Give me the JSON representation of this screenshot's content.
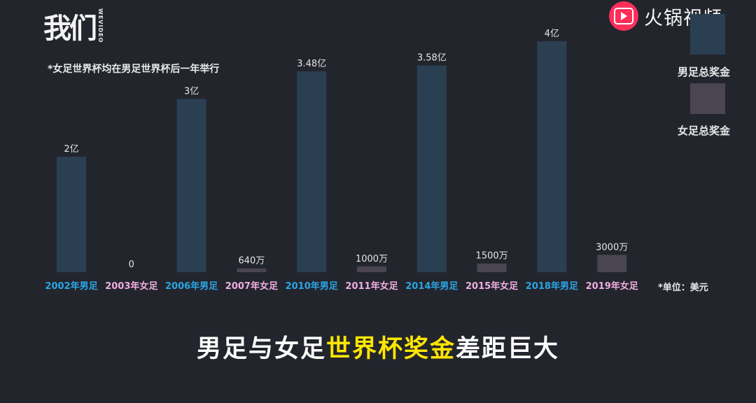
{
  "logo": {
    "main": "我们",
    "sub": "WEVIDEO"
  },
  "brand": {
    "icon": "play-button-icon",
    "name": "火锅视频",
    "color": "#ff2f5a"
  },
  "note": "*女足世界杯均在男足世界杯后一年举行",
  "unit_note": "*单位：美元",
  "legend": [
    {
      "label": "男足总奖金",
      "color": "#2b3f52"
    },
    {
      "label": "女足总奖金",
      "color": "#4a4550"
    }
  ],
  "caption": {
    "part1": "男足与女足",
    "highlight": "世界杯奖金",
    "part2": "差距巨大"
  },
  "chart_data": {
    "type": "bar",
    "categories": [
      "2002年男足",
      "2003年女足",
      "2006年男足",
      "2007年女足",
      "2010年男足",
      "2011年女足",
      "2014年男足",
      "2015年女足",
      "2018年男足",
      "2019年女足"
    ],
    "values": [
      200000000,
      0,
      300000000,
      6400000,
      348000000,
      10000000,
      358000000,
      15000000,
      400000000,
      30000000
    ],
    "value_labels": [
      "2亿",
      "0",
      "3亿",
      "640万",
      "3.48亿",
      "1000万",
      "3.58亿",
      "1500万",
      "4亿",
      "3000万"
    ],
    "groups": [
      "男足",
      "女足",
      "男足",
      "女足",
      "男足",
      "女足",
      "男足",
      "女足",
      "男足",
      "女足"
    ],
    "group_colors": {
      "男足": "#2b3f52",
      "女足": "#4a4550"
    },
    "label_colors": {
      "男足": "#2aa6e6",
      "女足": "#f0aee0"
    },
    "ylim": [
      0,
      400000000
    ],
    "grid": false,
    "legend_position": "right"
  }
}
